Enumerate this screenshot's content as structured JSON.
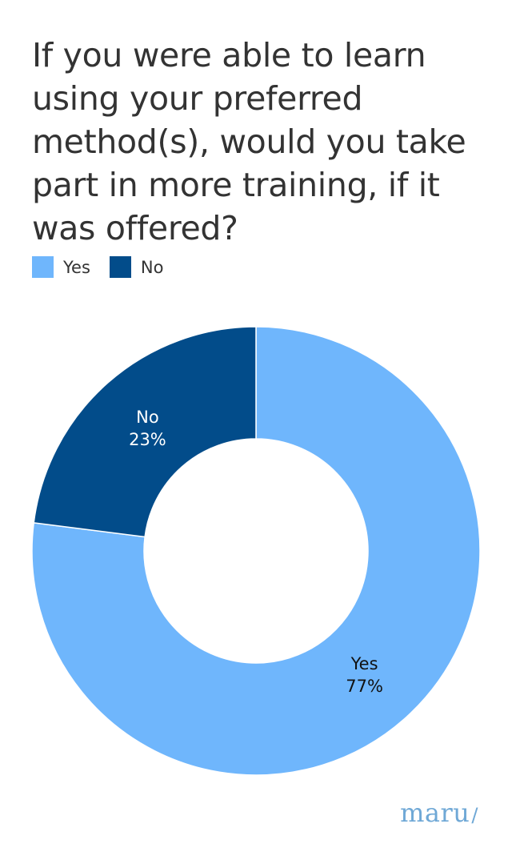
{
  "title": "If you were able to learn using your preferred method(s), would you take part in more training, if it was offered?",
  "logo": {
    "text": "maru",
    "slash": "/"
  },
  "chart_data": {
    "type": "pie",
    "donut": true,
    "title": "If you were able to learn using your preferred method(s), would you take part in more training, if it was offered?",
    "legend_position": "top-left",
    "categories": [
      "Yes",
      "No"
    ],
    "values": [
      77,
      23
    ],
    "value_labels": [
      "77%",
      "23%"
    ],
    "colors": [
      "#6fb6fc",
      "#024c8a"
    ],
    "label_colors": [
      "#111111",
      "#ffffff"
    ],
    "legend": [
      {
        "label": "Yes",
        "color": "#6fb6fc"
      },
      {
        "label": "No",
        "color": "#024c8a"
      }
    ]
  }
}
